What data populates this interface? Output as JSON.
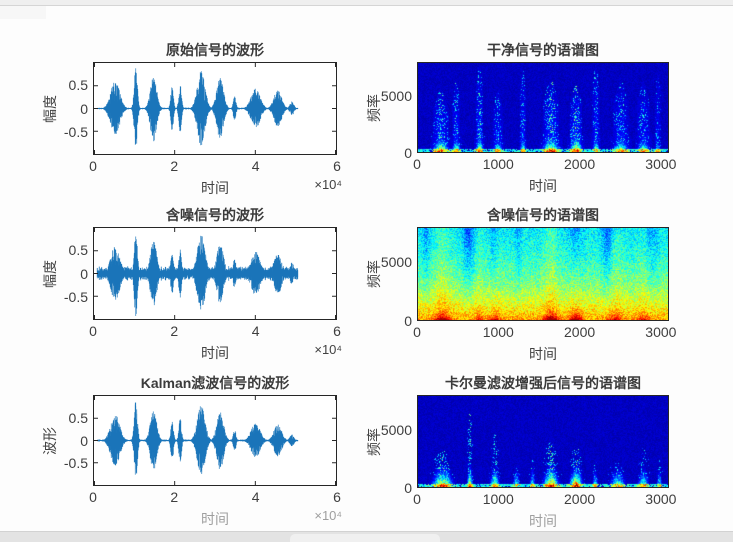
{
  "figure": {
    "kind": "matlab-figure",
    "background": "#fdfdfd",
    "waveform_color": "#1b76bb",
    "colormap": "jet"
  },
  "chart_data": [
    {
      "type": "line",
      "id": "original-waveform",
      "title": "原始信号的波形",
      "xlabel": "时间",
      "ylabel": "幅度",
      "x_scale_label": "×10⁴",
      "xlim": [
        0,
        6
      ],
      "ylim": [
        -1,
        1
      ],
      "xticks": [
        0,
        2,
        4,
        6
      ],
      "yticks": [
        0.5,
        0,
        -0.5
      ],
      "line_color": "#1b76bb",
      "noise_floor": 0.02,
      "signal_end": 5.05,
      "bursts": [
        [
          0.52,
          0.2,
          0.62
        ],
        [
          1.03,
          0.07,
          0.97
        ],
        [
          1.47,
          0.14,
          0.75
        ],
        [
          1.93,
          0.06,
          0.5
        ],
        [
          2.13,
          0.06,
          0.55
        ],
        [
          2.65,
          0.17,
          0.85
        ],
        [
          3.12,
          0.15,
          0.7
        ],
        [
          3.48,
          0.06,
          0.28
        ],
        [
          4.0,
          0.2,
          0.45
        ],
        [
          4.55,
          0.17,
          0.42
        ],
        [
          4.9,
          0.09,
          0.16
        ]
      ]
    },
    {
      "type": "heatmap",
      "id": "clean-spectrogram",
      "style": "clean",
      "title": "干净信号的语谱图",
      "xlabel": "时间",
      "ylabel": "频率",
      "xlim": [
        0,
        3100
      ],
      "ylim": [
        0,
        8000
      ],
      "xticks": [
        0,
        1000,
        2000,
        3000
      ],
      "yticks": [
        5000,
        0
      ],
      "colormap": "jet",
      "bursts": [
        [
          280,
          110,
          0.85,
          0.7
        ],
        [
          470,
          60,
          0.7,
          0.8
        ],
        [
          760,
          55,
          0.85,
          1.0
        ],
        [
          990,
          70,
          0.6,
          0.7
        ],
        [
          1300,
          45,
          0.65,
          0.95
        ],
        [
          1650,
          120,
          0.9,
          0.8
        ],
        [
          1960,
          90,
          0.95,
          0.75
        ],
        [
          2210,
          50,
          0.7,
          1.0
        ],
        [
          2520,
          110,
          0.7,
          0.8
        ],
        [
          2800,
          90,
          0.65,
          0.8
        ],
        [
          2980,
          40,
          0.5,
          0.9
        ]
      ]
    },
    {
      "type": "line",
      "id": "noisy-waveform",
      "title": "含噪信号的波形",
      "xlabel": "时间",
      "ylabel": "幅度",
      "x_scale_label": "×10⁴",
      "xlim": [
        0,
        6
      ],
      "ylim": [
        -1,
        1
      ],
      "xticks": [
        0,
        2,
        4,
        6
      ],
      "yticks": [
        0.5,
        0,
        -0.5
      ],
      "line_color": "#1b76bb",
      "noise_floor": 0.17,
      "signal_end": 5.05,
      "bursts": [
        [
          0.52,
          0.2,
          0.62
        ],
        [
          1.03,
          0.07,
          0.97
        ],
        [
          1.47,
          0.14,
          0.75
        ],
        [
          1.93,
          0.06,
          0.5
        ],
        [
          2.13,
          0.06,
          0.55
        ],
        [
          2.65,
          0.17,
          0.9
        ],
        [
          3.12,
          0.15,
          0.7
        ],
        [
          3.48,
          0.06,
          0.35
        ],
        [
          4.0,
          0.2,
          0.5
        ],
        [
          4.55,
          0.17,
          0.48
        ],
        [
          4.9,
          0.09,
          0.25
        ]
      ]
    },
    {
      "type": "heatmap",
      "id": "noisy-spectrogram",
      "style": "noisy",
      "title": "含噪信号的语谱图",
      "xlabel": "时间",
      "ylabel": "频率",
      "xlim": [
        0,
        3100
      ],
      "ylim": [
        0,
        8000
      ],
      "xticks": [
        0,
        1000,
        2000,
        3000
      ],
      "yticks": [
        5000,
        0
      ],
      "colormap": "jet",
      "bursts": [
        [
          300,
          130,
          0.8
        ],
        [
          760,
          60,
          0.4
        ],
        [
          950,
          80,
          0.5
        ],
        [
          1650,
          120,
          0.85
        ],
        [
          1960,
          100,
          0.8
        ],
        [
          2450,
          120,
          0.45
        ],
        [
          2800,
          100,
          0.4
        ]
      ],
      "dark_bands": [
        [
          90,
          60,
          0.6
        ],
        [
          620,
          90,
          1
        ],
        [
          940,
          60,
          0.8
        ],
        [
          1240,
          50,
          0.5
        ],
        [
          1960,
          120,
          0.9
        ],
        [
          2350,
          90,
          0.9
        ],
        [
          2900,
          120,
          0.5
        ]
      ]
    },
    {
      "type": "line",
      "id": "kalman-waveform",
      "title": "Kalman滤波信号的波形",
      "xlabel": "时间",
      "ylabel": "波形",
      "x_scale_label": "×10⁴",
      "xlim": [
        0,
        6
      ],
      "ylim": [
        -1,
        1
      ],
      "xticks": [
        0,
        2,
        4,
        6
      ],
      "yticks": [
        0.5,
        0,
        -0.5
      ],
      "line_color": "#1b76bb",
      "noise_floor": 0.025,
      "signal_end": 5.05,
      "bursts": [
        [
          0.52,
          0.2,
          0.6
        ],
        [
          1.03,
          0.07,
          0.95
        ],
        [
          1.47,
          0.14,
          0.72
        ],
        [
          1.93,
          0.06,
          0.48
        ],
        [
          2.13,
          0.06,
          0.52
        ],
        [
          2.65,
          0.17,
          0.82
        ],
        [
          3.12,
          0.15,
          0.68
        ],
        [
          3.48,
          0.06,
          0.26
        ],
        [
          4.0,
          0.2,
          0.4
        ],
        [
          4.55,
          0.17,
          0.38
        ],
        [
          4.9,
          0.09,
          0.14
        ]
      ]
    },
    {
      "type": "heatmap",
      "id": "enhanced-spectrogram",
      "style": "enhanced",
      "title": "卡尔曼滤波增强后信号的语谱图",
      "xlabel": "时间",
      "ylabel": "频率",
      "xlim": [
        0,
        3100
      ],
      "ylim": [
        0,
        8000
      ],
      "xticks": [
        0,
        1000,
        2000,
        3000
      ],
      "yticks": [
        5000,
        0
      ],
      "colormap": "jet",
      "bursts": [
        [
          300,
          140,
          0.9,
          0.4
        ],
        [
          640,
          40,
          0.85,
          0.85
        ],
        [
          950,
          70,
          0.7,
          0.6
        ],
        [
          1220,
          50,
          0.5,
          0.25
        ],
        [
          1420,
          40,
          0.55,
          0.3
        ],
        [
          1650,
          110,
          0.95,
          0.5
        ],
        [
          1960,
          90,
          0.95,
          0.45
        ],
        [
          2200,
          40,
          0.5,
          0.3
        ],
        [
          2480,
          110,
          0.6,
          0.3
        ],
        [
          2800,
          80,
          0.6,
          0.45
        ],
        [
          3000,
          40,
          0.45,
          0.3
        ]
      ]
    }
  ]
}
